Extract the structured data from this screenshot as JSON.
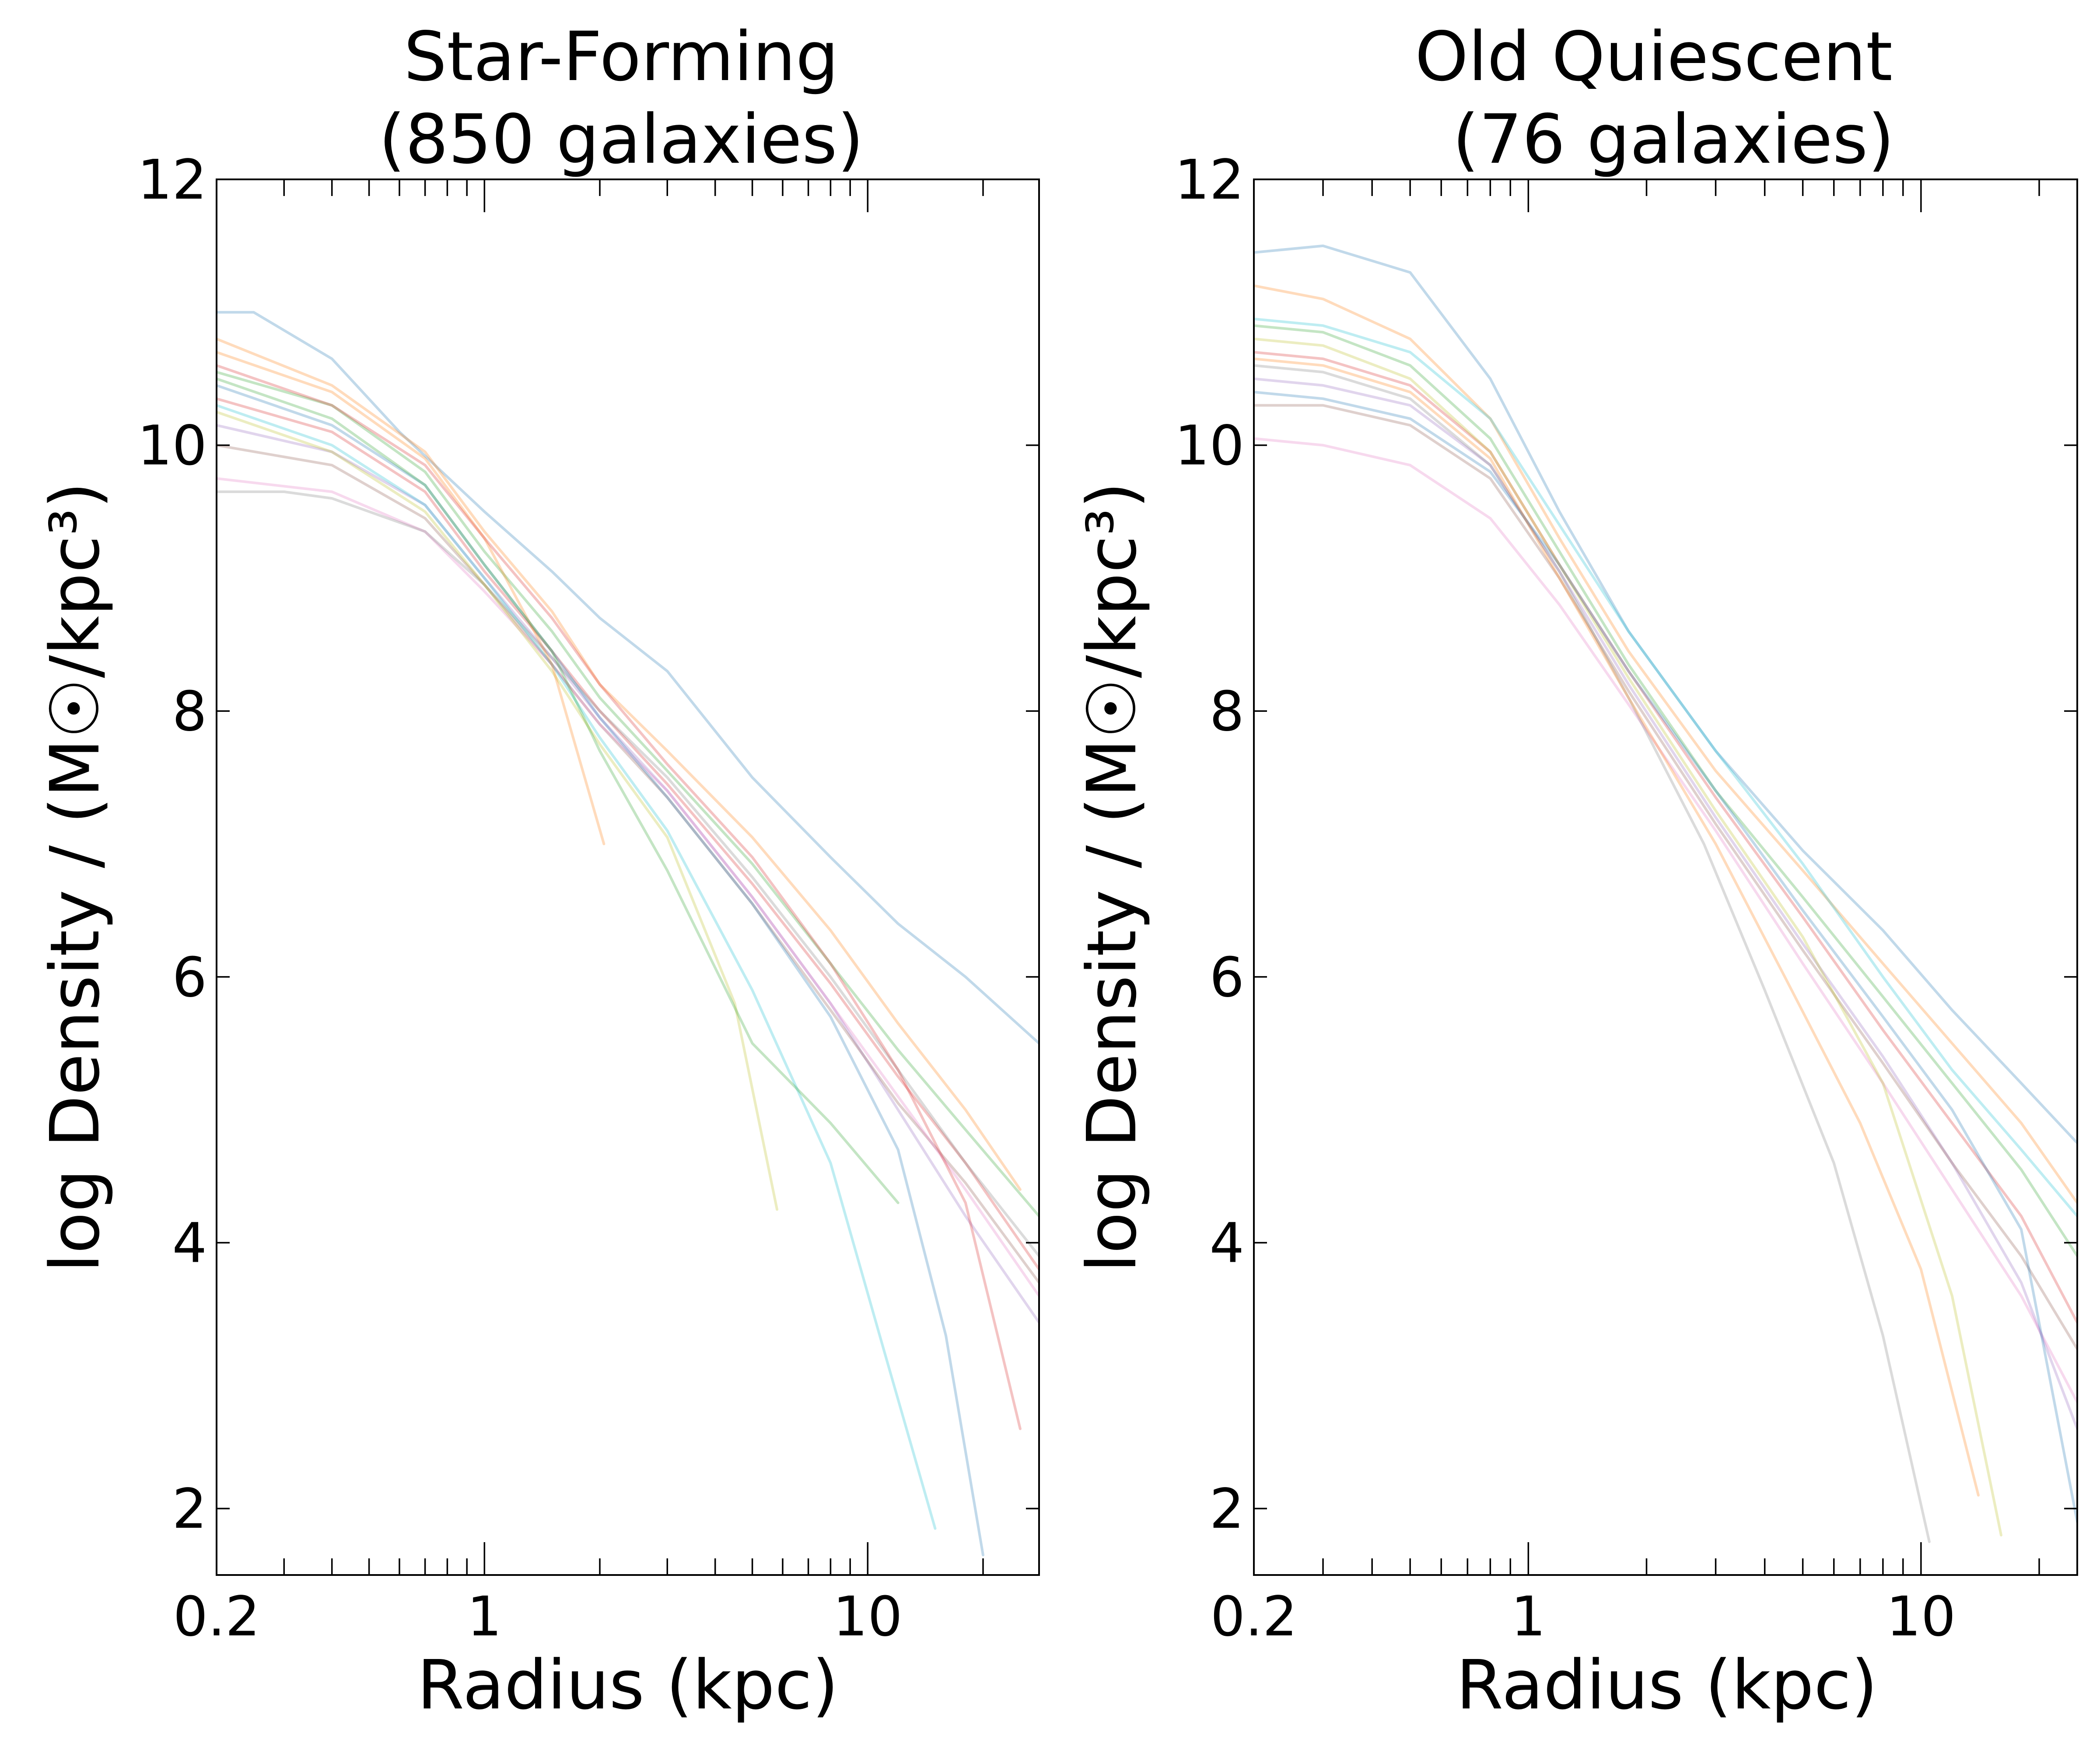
{
  "figure": {
    "panels": [
      {
        "title_line1": "Star-Forming",
        "title_line2": "(850 galaxies)",
        "xlabel": "Radius (kpc)",
        "ylabel": "log Density / (M☉/kpc³)"
      },
      {
        "title_line1": "Old Quiescent",
        "title_line2": "(76 galaxies)",
        "xlabel": "Radius (kpc)",
        "ylabel": "log Density / (M☉/kpc³)"
      }
    ]
  },
  "chart_data": [
    {
      "type": "line",
      "title": "Star-Forming (850 galaxies)",
      "xlabel": "Radius (kpc)",
      "ylabel": "log Density / (M☉/kpc³)",
      "xscale": "log",
      "xlim": [
        0.2,
        28
      ],
      "ylim": [
        1.5,
        12
      ],
      "xticks": [
        0.2,
        1,
        10
      ],
      "xtick_labels": [
        "0.2",
        "1",
        "10"
      ],
      "yticks": [
        2,
        4,
        6,
        8,
        10,
        12
      ],
      "ytick_labels": [
        "2",
        "4",
        "6",
        "8",
        "10",
        "12"
      ],
      "grid": false,
      "note": "many semi-transparent individual galaxy profiles; representative profiles listed",
      "series": [
        {
          "x": [
            0.2,
            0.25,
            0.4,
            0.6,
            1,
            1.5,
            2,
            3,
            5,
            8,
            12,
            18,
            28
          ],
          "y": [
            11.0,
            11.0,
            10.65,
            10.1,
            9.5,
            9.05,
            8.7,
            8.3,
            7.5,
            6.9,
            6.4,
            6.0,
            5.5
          ]
        },
        {
          "x": [
            0.2,
            0.4,
            0.7,
            1,
            1.5,
            2,
            3,
            5,
            8,
            12,
            18,
            25
          ],
          "y": [
            10.8,
            10.45,
            9.95,
            9.35,
            8.75,
            8.2,
            7.7,
            7.05,
            6.35,
            5.65,
            5.0,
            4.4
          ]
        },
        {
          "x": [
            0.2,
            0.4,
            0.7,
            1,
            1.5,
            2,
            3,
            5,
            8,
            12,
            18,
            28
          ],
          "y": [
            10.55,
            10.3,
            9.8,
            9.2,
            8.6,
            8.1,
            7.55,
            6.85,
            6.1,
            5.45,
            4.85,
            4.2
          ]
        },
        {
          "x": [
            0.2,
            0.4,
            0.7,
            1,
            1.5,
            2,
            3,
            5,
            8,
            12,
            18,
            28
          ],
          "y": [
            10.35,
            10.1,
            9.65,
            9.05,
            8.45,
            8.0,
            7.45,
            6.7,
            5.95,
            5.25,
            4.6,
            3.8
          ]
        },
        {
          "x": [
            0.2,
            0.4,
            0.7,
            1,
            1.5,
            2,
            3,
            5,
            8,
            12,
            18,
            28
          ],
          "y": [
            10.15,
            9.95,
            9.55,
            9.0,
            8.4,
            7.95,
            7.4,
            6.6,
            5.8,
            5.0,
            4.2,
            3.4
          ]
        },
        {
          "x": [
            0.2,
            0.4,
            0.7,
            1,
            1.5,
            2,
            3,
            5,
            8,
            12,
            18,
            28
          ],
          "y": [
            10.0,
            9.85,
            9.45,
            8.95,
            8.35,
            7.9,
            7.35,
            6.55,
            5.75,
            5.05,
            4.45,
            3.7
          ]
        },
        {
          "x": [
            0.2,
            0.4,
            0.7,
            1,
            1.5,
            2,
            3,
            5,
            8,
            12,
            18,
            28
          ],
          "y": [
            9.75,
            9.65,
            9.35,
            8.9,
            8.35,
            7.9,
            7.4,
            6.6,
            5.8,
            5.1,
            4.4,
            3.6
          ]
        },
        {
          "x": [
            0.2,
            0.3,
            0.4,
            0.7,
            1,
            1.5,
            2,
            3,
            5,
            8,
            12,
            18,
            28
          ],
          "y": [
            9.65,
            9.65,
            9.6,
            9.35,
            8.95,
            8.4,
            8.0,
            7.5,
            6.75,
            6.0,
            5.3,
            4.6,
            3.9
          ]
        },
        {
          "x": [
            0.2,
            0.4,
            0.7,
            1,
            1.5,
            2,
            3,
            4.5,
            5.8
          ],
          "y": [
            10.25,
            9.95,
            9.5,
            8.95,
            8.3,
            7.75,
            7.05,
            5.8,
            4.25
          ]
        },
        {
          "x": [
            0.2,
            0.4,
            0.7,
            1,
            1.5,
            2,
            3,
            5,
            8,
            11,
            15
          ],
          "y": [
            10.3,
            10.0,
            9.55,
            9.0,
            8.35,
            7.8,
            7.1,
            5.9,
            4.6,
            3.2,
            1.85
          ]
        },
        {
          "x": [
            0.2,
            0.4,
            0.7,
            1,
            1.5,
            2,
            3,
            5,
            8,
            12,
            16,
            20
          ],
          "y": [
            10.45,
            10.15,
            9.7,
            9.1,
            8.45,
            7.95,
            7.35,
            6.55,
            5.7,
            4.7,
            3.3,
            1.65
          ]
        },
        {
          "x": [
            0.2,
            0.4,
            0.7,
            1,
            1.5,
            2.05
          ],
          "y": [
            10.7,
            10.4,
            9.9,
            9.3,
            8.35,
            7.0
          ]
        },
        {
          "x": [
            0.2,
            0.4,
            0.7,
            1,
            1.5,
            2,
            3,
            5,
            8,
            12
          ],
          "y": [
            10.5,
            10.2,
            9.7,
            9.1,
            8.45,
            7.7,
            6.8,
            5.5,
            4.9,
            4.3
          ]
        },
        {
          "x": [
            0.2,
            0.4,
            0.7,
            1,
            1.5,
            2,
            3,
            5,
            8,
            12,
            18,
            25
          ],
          "y": [
            10.6,
            10.3,
            9.85,
            9.3,
            8.7,
            8.2,
            7.6,
            6.9,
            6.1,
            5.3,
            4.3,
            2.6
          ]
        }
      ]
    },
    {
      "type": "line",
      "title": "Old Quiescent (76 galaxies)",
      "xlabel": "Radius (kpc)",
      "ylabel": "log Density / (M☉/kpc³)",
      "xscale": "log",
      "xlim": [
        0.2,
        25
      ],
      "ylim": [
        1.5,
        12
      ],
      "xticks": [
        0.2,
        1,
        10
      ],
      "xtick_labels": [
        "0.2",
        "1",
        "10"
      ],
      "yticks": [
        2,
        4,
        6,
        8,
        10,
        12
      ],
      "ytick_labels": [
        "2",
        "4",
        "6",
        "8",
        "10",
        "12"
      ],
      "grid": false,
      "note": "many semi-transparent individual galaxy profiles; representative profiles listed",
      "series": [
        {
          "x": [
            0.2,
            0.3,
            0.5,
            0.8,
            1.2,
            1.8,
            3,
            5,
            8,
            12,
            18,
            25
          ],
          "y": [
            11.45,
            11.5,
            11.3,
            10.5,
            9.5,
            8.6,
            7.7,
            6.95,
            6.35,
            5.75,
            5.2,
            4.75
          ]
        },
        {
          "x": [
            0.2,
            0.3,
            0.5,
            0.8,
            1.2,
            1.8,
            3,
            5,
            8,
            12,
            18,
            25
          ],
          "y": [
            11.2,
            11.1,
            10.8,
            10.2,
            9.3,
            8.45,
            7.55,
            6.8,
            6.1,
            5.5,
            4.9,
            4.3
          ]
        },
        {
          "x": [
            0.2,
            0.3,
            0.5,
            0.8,
            1.2,
            1.8,
            3,
            5,
            8,
            12,
            18,
            25
          ],
          "y": [
            10.9,
            10.85,
            10.6,
            10.05,
            9.2,
            8.35,
            7.4,
            6.6,
            5.85,
            5.2,
            4.55,
            3.9
          ]
        },
        {
          "x": [
            0.2,
            0.3,
            0.5,
            0.8,
            1.2,
            1.8,
            3,
            5,
            8,
            12,
            18,
            25
          ],
          "y": [
            10.7,
            10.65,
            10.45,
            9.95,
            9.1,
            8.3,
            7.35,
            6.45,
            5.6,
            4.9,
            4.2,
            3.4
          ]
        },
        {
          "x": [
            0.2,
            0.3,
            0.5,
            0.8,
            1.2,
            1.8,
            3,
            5,
            8,
            12,
            18,
            25
          ],
          "y": [
            10.5,
            10.45,
            10.3,
            9.85,
            9.05,
            8.2,
            7.2,
            6.25,
            5.4,
            4.6,
            3.7,
            2.6
          ]
        },
        {
          "x": [
            0.2,
            0.3,
            0.5,
            0.8,
            1.2,
            1.8,
            3,
            5,
            8,
            12,
            18,
            25
          ],
          "y": [
            10.3,
            10.3,
            10.15,
            9.75,
            9.0,
            8.15,
            7.15,
            6.2,
            5.35,
            4.6,
            3.9,
            3.2
          ]
        },
        {
          "x": [
            0.2,
            0.3,
            0.5,
            0.8,
            1.2,
            1.8,
            3,
            5,
            8,
            12,
            18,
            25
          ],
          "y": [
            10.05,
            10.0,
            9.85,
            9.45,
            8.8,
            8.05,
            7.1,
            6.1,
            5.2,
            4.4,
            3.6,
            2.8
          ]
        },
        {
          "x": [
            0.2,
            0.3,
            0.5,
            0.8,
            1.2,
            1.8,
            2.8,
            4,
            6,
            8,
            10.5
          ],
          "y": [
            10.6,
            10.55,
            10.35,
            9.85,
            9.05,
            8.1,
            7.0,
            5.9,
            4.6,
            3.3,
            1.75
          ]
        },
        {
          "x": [
            0.2,
            0.3,
            0.5,
            0.8,
            1.2,
            1.8,
            3,
            5,
            8,
            12,
            16
          ],
          "y": [
            10.8,
            10.75,
            10.5,
            9.95,
            9.1,
            8.25,
            7.25,
            6.3,
            5.2,
            3.6,
            1.8
          ]
        },
        {
          "x": [
            0.2,
            0.3,
            0.5,
            0.8,
            1.2,
            1.8,
            3,
            5,
            8,
            12,
            18,
            25
          ],
          "y": [
            10.95,
            10.9,
            10.7,
            10.2,
            9.4,
            8.6,
            7.7,
            6.85,
            6.0,
            5.3,
            4.7,
            4.2
          ]
        },
        {
          "x": [
            0.2,
            0.3,
            0.5,
            0.8,
            1.2,
            1.8,
            3,
            5,
            8,
            12,
            18,
            25
          ],
          "y": [
            10.4,
            10.35,
            10.2,
            9.8,
            9.1,
            8.3,
            7.4,
            6.5,
            5.7,
            5.0,
            4.1,
            1.9
          ]
        },
        {
          "x": [
            0.2,
            0.3,
            0.5,
            0.8,
            1.2,
            1.8,
            3,
            4.5,
            7,
            10,
            14
          ],
          "y": [
            10.65,
            10.6,
            10.4,
            9.9,
            9.0,
            8.1,
            7.0,
            6.0,
            4.9,
            3.8,
            2.1
          ]
        }
      ]
    }
  ]
}
